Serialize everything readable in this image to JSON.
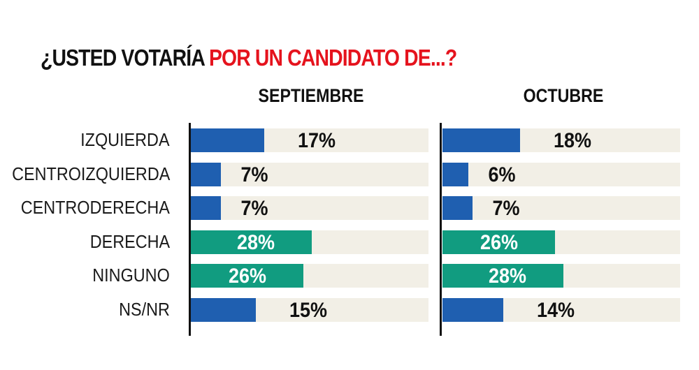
{
  "title": {
    "part1": "¿USTED VOTARÍA ",
    "part2": "POR UN CANDIDATO DE...?"
  },
  "colors": {
    "title_dark": "#111111",
    "title_red": "#e5131d",
    "blue": "#1f5fb0",
    "green": "#119c80",
    "track": "#f2efe6",
    "label_dark": "#111111",
    "label_light": "#ffffff"
  },
  "chart_data": {
    "type": "bar",
    "orientation": "horizontal",
    "title": "¿USTED VOTARÍA POR UN CANDIDATO DE...?",
    "categories": [
      "IZQUIERDA",
      "CENTROIZQUIERDA",
      "CENTRODERECHA",
      "DERECHA",
      "NINGUNO",
      "NS/NR"
    ],
    "category_colors": [
      "blue",
      "blue",
      "blue",
      "green",
      "green",
      "blue"
    ],
    "xlim": [
      0,
      55
    ],
    "series": [
      {
        "name": "SEPTIEMBRE",
        "values": [
          17,
          7,
          7,
          28,
          26,
          15
        ],
        "labels": [
          "17%",
          "7%",
          "7%",
          "28%",
          "26%",
          "15%"
        ]
      },
      {
        "name": "OCTUBRE",
        "values": [
          18,
          6,
          7,
          26,
          28,
          14
        ],
        "labels": [
          "18%",
          "6%",
          "7%",
          "26%",
          "28%",
          "14%"
        ]
      }
    ]
  }
}
